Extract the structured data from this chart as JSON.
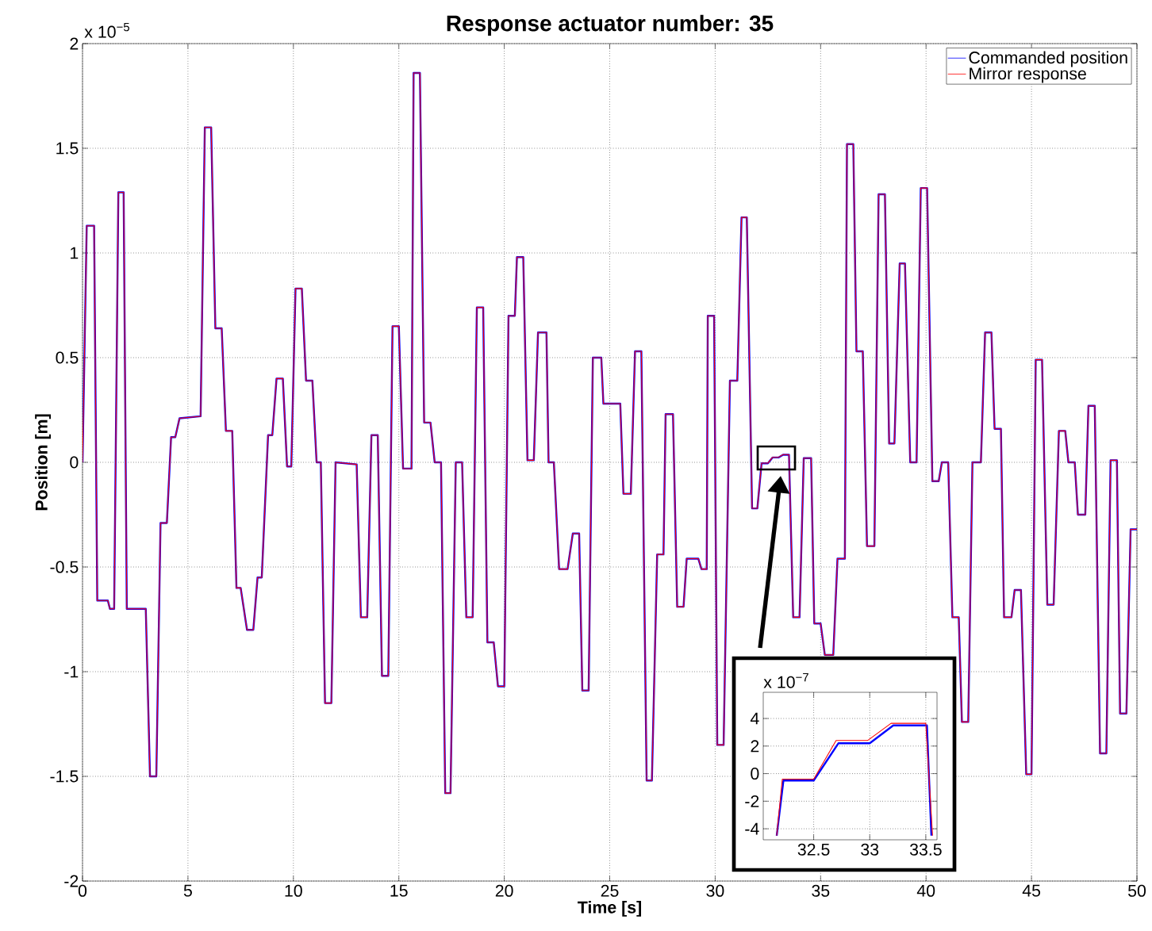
{
  "chart_data": [
    {
      "type": "line",
      "title": "Response actuator number: 35",
      "xlabel": "Time [s]",
      "ylabel": "Position [m]",
      "annotations": [
        "x 10$^{−5}$"
      ],
      "xlim": [
        0,
        50
      ],
      "ylim": [
        -2,
        2
      ],
      "xticks": [
        0,
        5,
        10,
        15,
        20,
        25,
        30,
        35,
        40,
        45,
        50
      ],
      "yticks": [
        -2,
        -1.5,
        -1,
        -0.5,
        0,
        0.5,
        1,
        1.5,
        2
      ],
      "grid": true,
      "legend": "top right",
      "x": [
        0,
        0.2,
        0.55,
        0.7,
        1.2,
        1.3,
        1.5,
        1.7,
        1.95,
        2.1,
        3.0,
        3.2,
        3.5,
        3.7,
        4.0,
        4.2,
        4.4,
        4.6,
        5.6,
        5.8,
        6.1,
        6.3,
        6.6,
        6.8,
        7.1,
        7.3,
        7.5,
        7.8,
        8.1,
        8.3,
        8.5,
        8.8,
        9.0,
        9.2,
        9.5,
        9.7,
        9.9,
        10.1,
        10.4,
        10.6,
        10.9,
        11.1,
        11.3,
        11.5,
        11.8,
        12.0,
        13.0,
        13.2,
        13.5,
        13.7,
        14.0,
        14.2,
        14.5,
        14.7,
        15.0,
        15.2,
        15.6,
        15.7,
        16.0,
        16.2,
        16.5,
        16.7,
        17.0,
        17.2,
        17.45,
        17.7,
        18.0,
        18.2,
        18.5,
        18.7,
        19.0,
        19.2,
        19.5,
        19.7,
        20.0,
        20.2,
        20.5,
        20.6,
        20.9,
        21.1,
        21.4,
        21.6,
        22.0,
        22.1,
        22.35,
        22.6,
        23.0,
        23.25,
        23.55,
        23.7,
        24.0,
        24.2,
        24.6,
        24.7,
        25.5,
        25.65,
        26.0,
        26.2,
        26.5,
        26.75,
        27.0,
        27.25,
        27.55,
        27.65,
        28.0,
        28.2,
        28.5,
        28.65,
        29.2,
        29.35,
        29.6,
        29.65,
        29.95,
        30.1,
        30.4,
        30.7,
        31.05,
        31.25,
        31.5,
        31.75,
        32.0,
        32.2,
        32.5,
        32.72,
        33.0,
        33.22,
        33.5,
        33.7,
        34.0,
        34.2,
        34.55,
        34.7,
        35.0,
        35.2,
        35.6,
        35.8,
        36.15,
        36.25,
        36.55,
        36.7,
        37.0,
        37.2,
        37.55,
        37.75,
        38.05,
        38.25,
        38.5,
        38.75,
        39.0,
        39.25,
        39.55,
        39.75,
        40.05,
        40.3,
        40.6,
        40.75,
        41.05,
        41.25,
        41.55,
        41.7,
        42.0,
        42.2,
        42.6,
        42.8,
        43.1,
        43.25,
        43.55,
        43.7,
        44.05,
        44.2,
        44.5,
        44.75,
        45.0,
        45.2,
        45.5,
        45.75,
        46.05,
        46.3,
        46.6,
        46.75,
        47.05,
        47.2,
        47.55,
        47.7,
        48.0,
        48.25,
        48.55,
        48.75,
        49.05,
        49.2,
        49.5,
        49.7,
        50
      ],
      "series": [
        {
          "name": "Commanded position",
          "color": "#0000ff",
          "values": [
            0,
            1.13,
            1.13,
            -0.66,
            -0.66,
            -0.7,
            -0.7,
            1.29,
            1.29,
            -0.7,
            -0.7,
            -1.5,
            -1.5,
            -0.29,
            -0.29,
            0.12,
            0.12,
            0.21,
            0.22,
            1.6,
            1.6,
            0.64,
            0.64,
            0.15,
            0.15,
            -0.6,
            -0.6,
            -0.8,
            -0.8,
            -0.55,
            -0.55,
            0.13,
            0.13,
            0.4,
            0.4,
            -0.02,
            -0.02,
            0.83,
            0.83,
            0.39,
            0.39,
            0,
            0,
            -1.15,
            -1.15,
            0,
            -0.01,
            -0.74,
            -0.74,
            0.13,
            0.13,
            -1.02,
            -1.02,
            0.65,
            0.65,
            -0.03,
            -0.03,
            1.86,
            1.86,
            0.19,
            0.19,
            0,
            0,
            -1.58,
            -1.58,
            0,
            0,
            -0.74,
            -0.74,
            0.74,
            0.74,
            -0.86,
            -0.86,
            -1.07,
            -1.07,
            0.7,
            0.7,
            0.98,
            0.98,
            0.01,
            0.01,
            0.62,
            0.62,
            0,
            0,
            -0.51,
            -0.51,
            -0.34,
            -0.34,
            -1.09,
            -1.09,
            0.5,
            0.5,
            0.28,
            0.28,
            -0.15,
            -0.15,
            0.53,
            0.53,
            -1.52,
            -1.52,
            -0.44,
            -0.44,
            0.23,
            0.23,
            -0.69,
            -0.69,
            -0.46,
            -0.46,
            -0.51,
            -0.51,
            0.7,
            0.7,
            -1.35,
            -1.35,
            0.39,
            0.39,
            1.17,
            1.17,
            -0.22,
            -0.22,
            -0.005,
            -0.005,
            0.023,
            0.023,
            0.036,
            0.036,
            -0.74,
            -0.74,
            0.02,
            0.02,
            -0.77,
            -0.77,
            -0.92,
            -0.92,
            -0.46,
            -0.46,
            1.52,
            1.52,
            0.53,
            0.53,
            -0.4,
            -0.4,
            1.28,
            1.28,
            0.09,
            0.09,
            0.95,
            0.95,
            0,
            0,
            1.31,
            1.31,
            -0.09,
            -0.09,
            0,
            0,
            -0.74,
            -0.74,
            -1.24,
            -1.24,
            0,
            0,
            0.62,
            0.62,
            0.16,
            0.16,
            -0.74,
            -0.74,
            -0.61,
            -0.61,
            -1.49,
            -1.49,
            0.49,
            0.49,
            -0.68,
            -0.68,
            0.15,
            0.15,
            0,
            0,
            -0.25,
            -0.25,
            0.27,
            0.27,
            -1.39,
            -1.39,
            0.01,
            0.01,
            -1.2,
            -1.2,
            -0.32,
            -0.32
          ]
        },
        {
          "name": "Mirror response",
          "color": "#ff0000",
          "values": [
            0,
            1.13,
            1.13,
            -0.66,
            -0.66,
            -0.7,
            -0.7,
            1.29,
            1.29,
            -0.7,
            -0.7,
            -1.5,
            -1.5,
            -0.29,
            -0.29,
            0.12,
            0.12,
            0.21,
            0.22,
            1.6,
            1.6,
            0.64,
            0.64,
            0.15,
            0.15,
            -0.6,
            -0.6,
            -0.8,
            -0.8,
            -0.55,
            -0.55,
            0.13,
            0.13,
            0.4,
            0.4,
            -0.02,
            -0.02,
            0.83,
            0.83,
            0.39,
            0.39,
            0,
            0,
            -1.15,
            -1.15,
            0,
            -0.01,
            -0.74,
            -0.74,
            0.13,
            0.13,
            -1.02,
            -1.02,
            0.65,
            0.65,
            -0.03,
            -0.03,
            1.86,
            1.86,
            0.19,
            0.19,
            0,
            0,
            -1.58,
            -1.58,
            0,
            0,
            -0.74,
            -0.74,
            0.74,
            0.74,
            -0.86,
            -0.86,
            -1.07,
            -1.07,
            0.7,
            0.7,
            0.98,
            0.98,
            0.01,
            0.01,
            0.62,
            0.62,
            0,
            0,
            -0.51,
            -0.51,
            -0.34,
            -0.34,
            -1.09,
            -1.09,
            0.5,
            0.5,
            0.28,
            0.28,
            -0.15,
            -0.15,
            0.53,
            0.53,
            -1.52,
            -1.52,
            -0.44,
            -0.44,
            0.23,
            0.23,
            -0.69,
            -0.69,
            -0.46,
            -0.46,
            -0.51,
            -0.51,
            0.7,
            0.7,
            -1.35,
            -1.35,
            0.39,
            0.39,
            1.17,
            1.17,
            -0.22,
            -0.22,
            -0.004,
            -0.004,
            0.024,
            0.024,
            0.037,
            0.037,
            -0.74,
            -0.74,
            0.02,
            0.02,
            -0.77,
            -0.77,
            -0.92,
            -0.92,
            -0.46,
            -0.46,
            1.52,
            1.52,
            0.53,
            0.53,
            -0.4,
            -0.4,
            1.28,
            1.28,
            0.09,
            0.09,
            0.95,
            0.95,
            0,
            0,
            1.31,
            1.31,
            -0.09,
            -0.09,
            0,
            0,
            -0.74,
            -0.74,
            -1.24,
            -1.24,
            0,
            0,
            0.62,
            0.62,
            0.16,
            0.16,
            -0.74,
            -0.74,
            -0.61,
            -0.61,
            -1.49,
            -1.49,
            0.49,
            0.49,
            -0.68,
            -0.68,
            0.15,
            0.15,
            0,
            0,
            -0.25,
            -0.25,
            0.27,
            0.27,
            -1.39,
            -1.39,
            0.01,
            0.01,
            -1.2,
            -1.2,
            -0.32,
            -0.32
          ]
        }
      ]
    },
    {
      "type": "line",
      "annotations": [
        "x 10$^{−7}$"
      ],
      "xlim": [
        32.05,
        33.6
      ],
      "ylim": [
        -4.8,
        5.9
      ],
      "xticks": [
        32.5,
        33,
        33.5
      ],
      "yticks": [
        -4,
        -2,
        0,
        2,
        4
      ],
      "grid": true,
      "series": [
        {
          "color": "#0000ff",
          "x": [
            32.17,
            32.23,
            32.5,
            32.72,
            33.0,
            33.21,
            33.51,
            33.55
          ],
          "values": [
            -4.5,
            -0.5,
            -0.5,
            2.2,
            2.2,
            3.5,
            3.5,
            -4.5
          ]
        },
        {
          "color": "#ff0000",
          "x": [
            32.17,
            32.22,
            32.5,
            32.7,
            32.98,
            33.19,
            33.5,
            33.56
          ],
          "values": [
            -4.5,
            -0.4,
            -0.4,
            2.4,
            2.4,
            3.65,
            3.65,
            -4.5
          ]
        }
      ]
    }
  ]
}
